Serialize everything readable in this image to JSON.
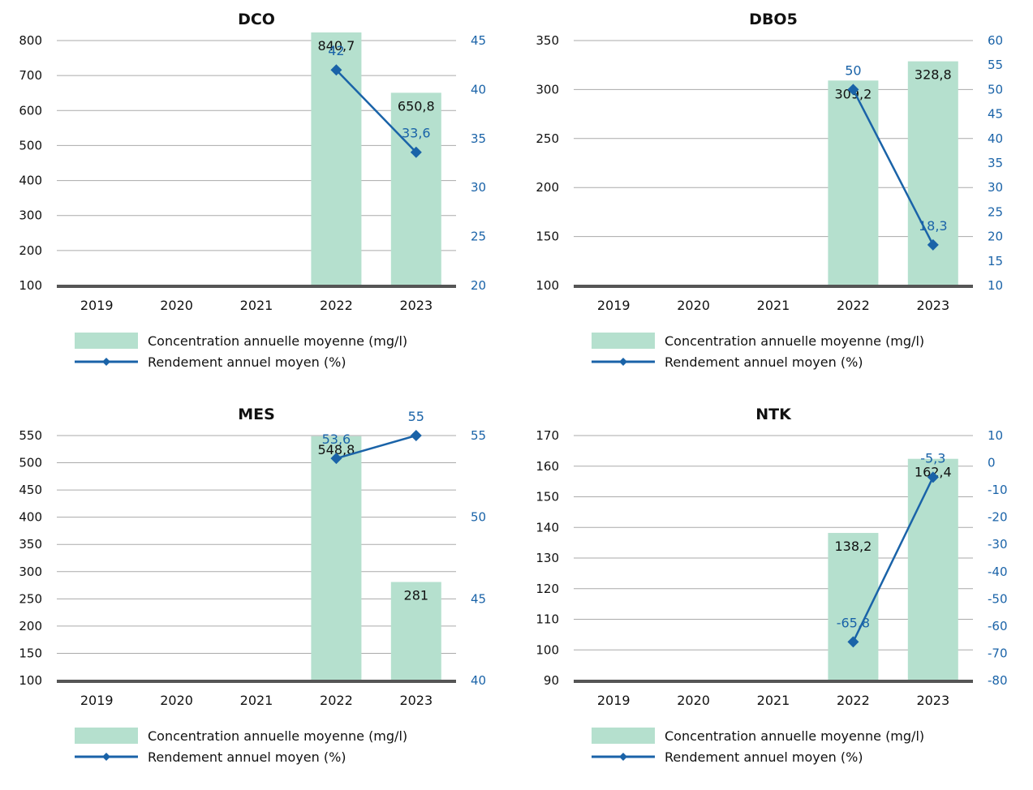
{
  "colors": {
    "bar": "#b5e0ce",
    "line": "#1a63a8",
    "right_axis_text": "#1a63a8",
    "grid": "#aaaaaa",
    "axis": "#555555"
  },
  "legend": {
    "bar_label": "Concentration annuelle moyenne (mg/l)",
    "line_label": "Rendement annuel moyen (%)"
  },
  "chart_data": [
    {
      "type": "bar",
      "title": "DCO",
      "categories": [
        "2019",
        "2020",
        "2021",
        "2022",
        "2023"
      ],
      "ylim": [
        100,
        800
      ],
      "yticks": [
        100,
        200,
        300,
        400,
        500,
        600,
        700,
        800
      ],
      "y2lim": [
        20,
        45
      ],
      "y2ticks": [
        20,
        25,
        30,
        35,
        40,
        45
      ],
      "series": [
        {
          "name": "Concentration annuelle moyenne (mg/l)",
          "type": "bar",
          "axis": "left",
          "values": [
            null,
            null,
            null,
            840.7,
            650.8
          ],
          "labels": [
            "",
            "",
            "",
            "840,7",
            "650,8"
          ]
        },
        {
          "name": "Rendement annuel moyen (%)",
          "type": "line",
          "axis": "right",
          "values": [
            null,
            null,
            null,
            42,
            33.6
          ],
          "labels": [
            "",
            "",
            "",
            "42",
            "33,6"
          ]
        }
      ]
    },
    {
      "type": "bar",
      "title": "DBO5",
      "categories": [
        "2019",
        "2020",
        "2021",
        "2022",
        "2023"
      ],
      "ylim": [
        100,
        350
      ],
      "yticks": [
        100,
        150,
        200,
        250,
        300,
        350
      ],
      "y2lim": [
        10,
        60
      ],
      "y2ticks": [
        10,
        15,
        20,
        25,
        30,
        35,
        40,
        45,
        50,
        55,
        60
      ],
      "series": [
        {
          "name": "Concentration annuelle moyenne (mg/l)",
          "type": "bar",
          "axis": "left",
          "values": [
            null,
            null,
            null,
            309.2,
            328.8
          ],
          "labels": [
            "",
            "",
            "",
            "309,2",
            "328,8"
          ]
        },
        {
          "name": "Rendement annuel moyen (%)",
          "type": "line",
          "axis": "right",
          "values": [
            null,
            null,
            null,
            50,
            18.3
          ],
          "labels": [
            "",
            "",
            "",
            "50",
            "18,3"
          ]
        }
      ]
    },
    {
      "type": "bar",
      "title": "MES",
      "categories": [
        "2019",
        "2020",
        "2021",
        "2022",
        "2023"
      ],
      "ylim": [
        100,
        550
      ],
      "yticks": [
        100,
        150,
        200,
        250,
        300,
        350,
        400,
        450,
        500,
        550
      ],
      "y2lim": [
        40,
        55
      ],
      "y2ticks": [
        40,
        45,
        50,
        55
      ],
      "series": [
        {
          "name": "Concentration annuelle moyenne (mg/l)",
          "type": "bar",
          "axis": "left",
          "values": [
            null,
            null,
            null,
            548.8,
            281
          ],
          "labels": [
            "",
            "",
            "",
            "548,8",
            "281"
          ]
        },
        {
          "name": "Rendement annuel moyen (%)",
          "type": "line",
          "axis": "right",
          "values": [
            null,
            null,
            null,
            53.6,
            55
          ],
          "labels": [
            "",
            "",
            "",
            "53,6",
            "55"
          ]
        }
      ]
    },
    {
      "type": "bar",
      "title": "NTK",
      "categories": [
        "2019",
        "2020",
        "2021",
        "2022",
        "2023"
      ],
      "ylim": [
        90,
        170
      ],
      "yticks": [
        90,
        100,
        110,
        120,
        130,
        140,
        150,
        160,
        170
      ],
      "y2lim": [
        -80,
        10
      ],
      "y2ticks": [
        -80,
        -70,
        -60,
        -50,
        -40,
        -30,
        -20,
        -10,
        0,
        10
      ],
      "series": [
        {
          "name": "Concentration annuelle moyenne (mg/l)",
          "type": "bar",
          "axis": "left",
          "values": [
            null,
            null,
            null,
            138.2,
            162.4
          ],
          "labels": [
            "",
            "",
            "",
            "138,2",
            "162,4"
          ]
        },
        {
          "name": "Rendement annuel moyen (%)",
          "type": "line",
          "axis": "right",
          "values": [
            null,
            null,
            null,
            -65.8,
            -5.3
          ],
          "labels": [
            "",
            "",
            "",
            "-65,8",
            "-5,3"
          ]
        }
      ]
    }
  ]
}
